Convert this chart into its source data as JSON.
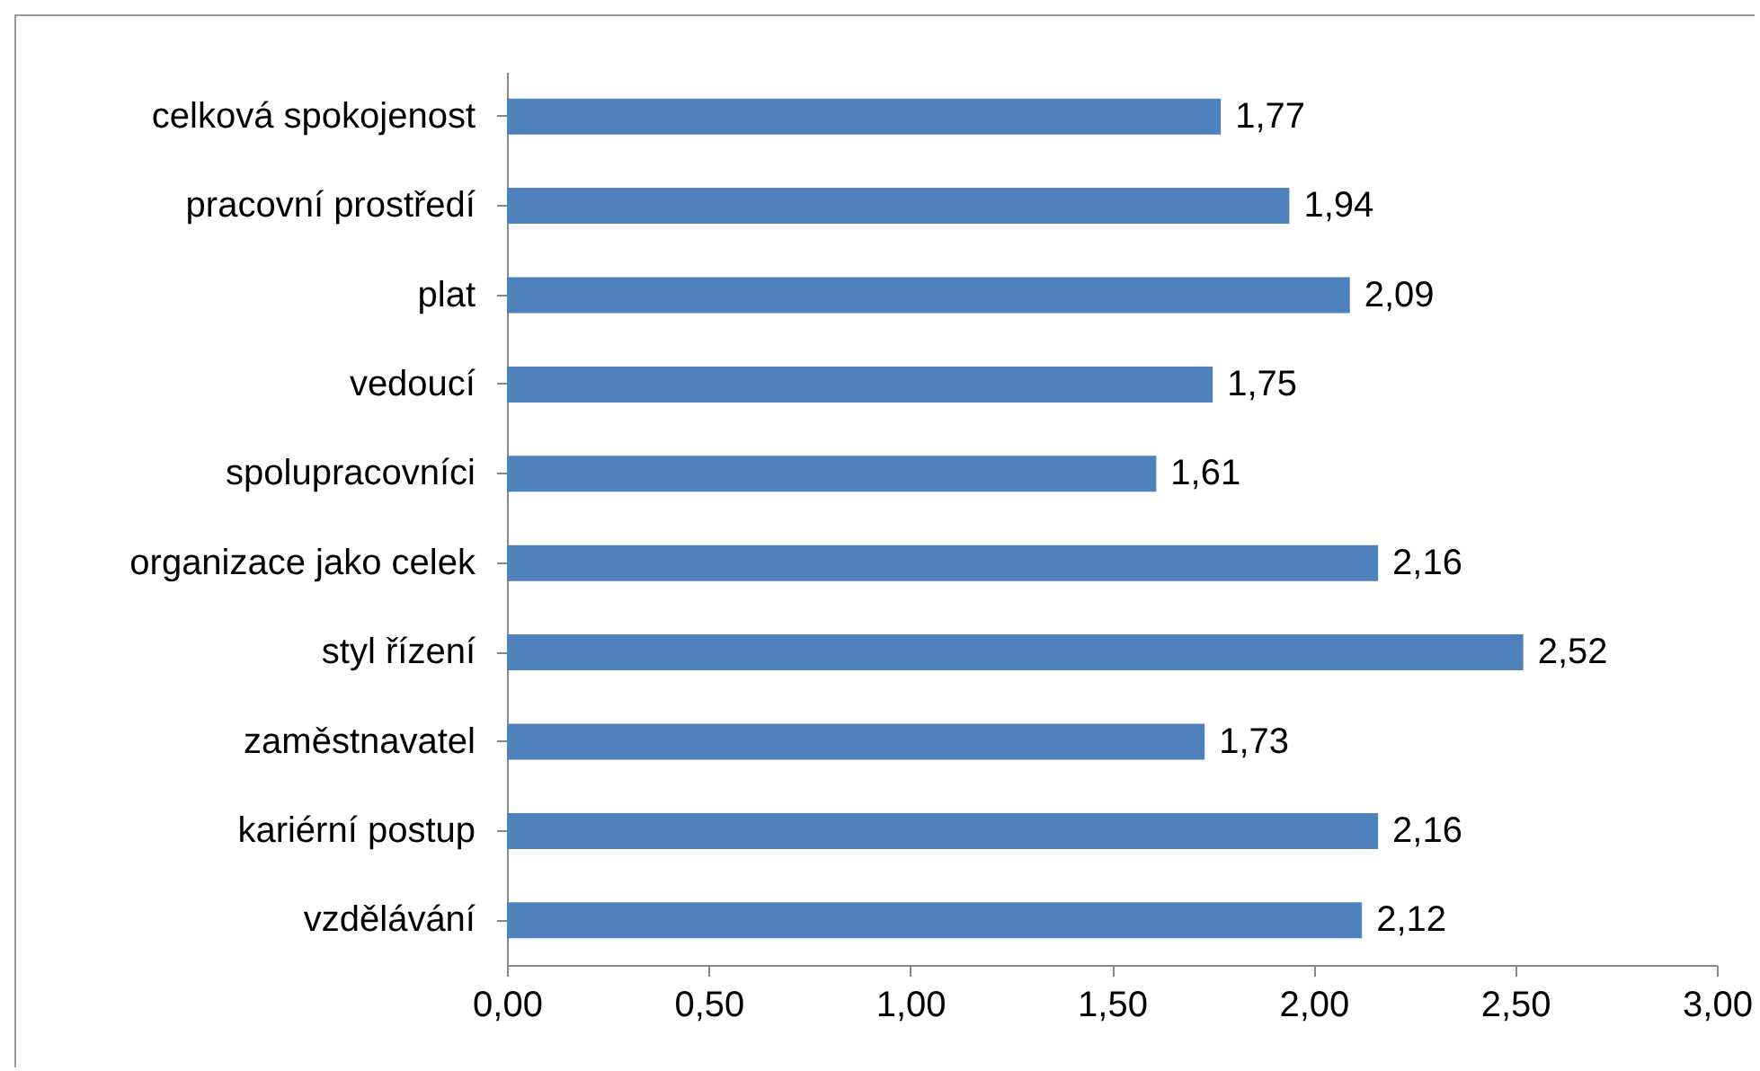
{
  "chart_data": {
    "type": "bar",
    "orientation": "horizontal",
    "categories": [
      "celková spokojenost",
      "pracovní prostředí",
      "plat",
      "vedoucí",
      "spolupracovníci",
      "organizace jako celek",
      "styl řízení",
      "zaměstnavatel",
      "kariérní postup",
      "vzdělávání"
    ],
    "values": [
      1.77,
      1.94,
      2.09,
      1.75,
      1.61,
      2.16,
      2.52,
      1.73,
      2.16,
      2.12
    ],
    "value_labels": [
      "1,77",
      "1,94",
      "2,09",
      "1,75",
      "1,61",
      "2,16",
      "2,52",
      "1,73",
      "2,16",
      "2,12"
    ],
    "color": "#4f81bd",
    "xlim": [
      0,
      3
    ],
    "xticks": [
      {
        "value": 0,
        "label": "0,00"
      },
      {
        "value": 0.5,
        "label": "0,50"
      },
      {
        "value": 1,
        "label": "1,00"
      },
      {
        "value": 1.5,
        "label": "1,50"
      },
      {
        "value": 2,
        "label": "2,00"
      },
      {
        "value": 2.5,
        "label": "2,50"
      },
      {
        "value": 3,
        "label": "3,00"
      }
    ],
    "grid": false
  }
}
